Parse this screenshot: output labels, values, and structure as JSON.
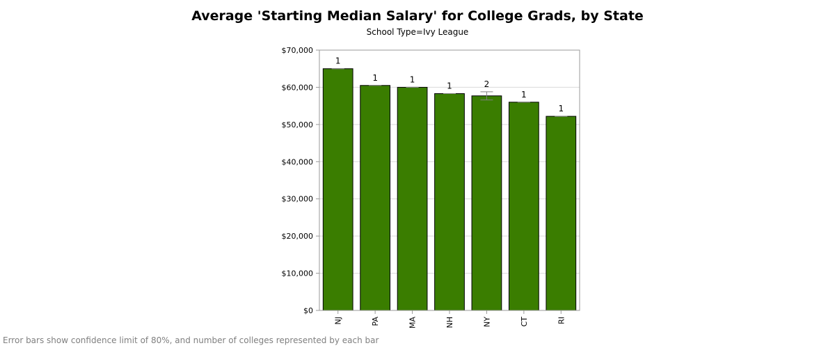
{
  "title": "Average 'Starting Median Salary' for College Grads, by State",
  "subtitle": "School Type=Ivy League",
  "footnote": "Error bars show confidence limit of 80%, and number of colleges represented by each bar",
  "colors": {
    "bar": "#3a7d00",
    "bar_outline": "#000000",
    "grid": "#d9d9d9",
    "axis": "#999999",
    "error_bar": "#808080"
  },
  "chart_data": {
    "type": "bar",
    "title": "Average 'Starting Median Salary' for College Grads, by State",
    "subtitle": "School Type=Ivy League",
    "xlabel": "",
    "ylabel": "",
    "categories": [
      "NJ",
      "PA",
      "MA",
      "NH",
      "NY",
      "CT",
      "RI"
    ],
    "values": [
      65000,
      60500,
      60000,
      58300,
      57700,
      56000,
      52200
    ],
    "counts": [
      "1",
      "1",
      "1",
      "1",
      "2",
      "1",
      "1"
    ],
    "error_low": [
      65000,
      60500,
      60000,
      58300,
      56600,
      56000,
      52200
    ],
    "error_high": [
      65000,
      60500,
      60000,
      58300,
      58800,
      56000,
      52200
    ],
    "ylim": [
      0,
      70000
    ],
    "yticks": [
      0,
      10000,
      20000,
      30000,
      40000,
      50000,
      60000,
      70000
    ],
    "ytick_labels": [
      "$0",
      "$10,000",
      "$20,000",
      "$30,000",
      "$40,000",
      "$50,000",
      "$60,000",
      "$70,000"
    ],
    "grid": true,
    "legend": "none"
  }
}
